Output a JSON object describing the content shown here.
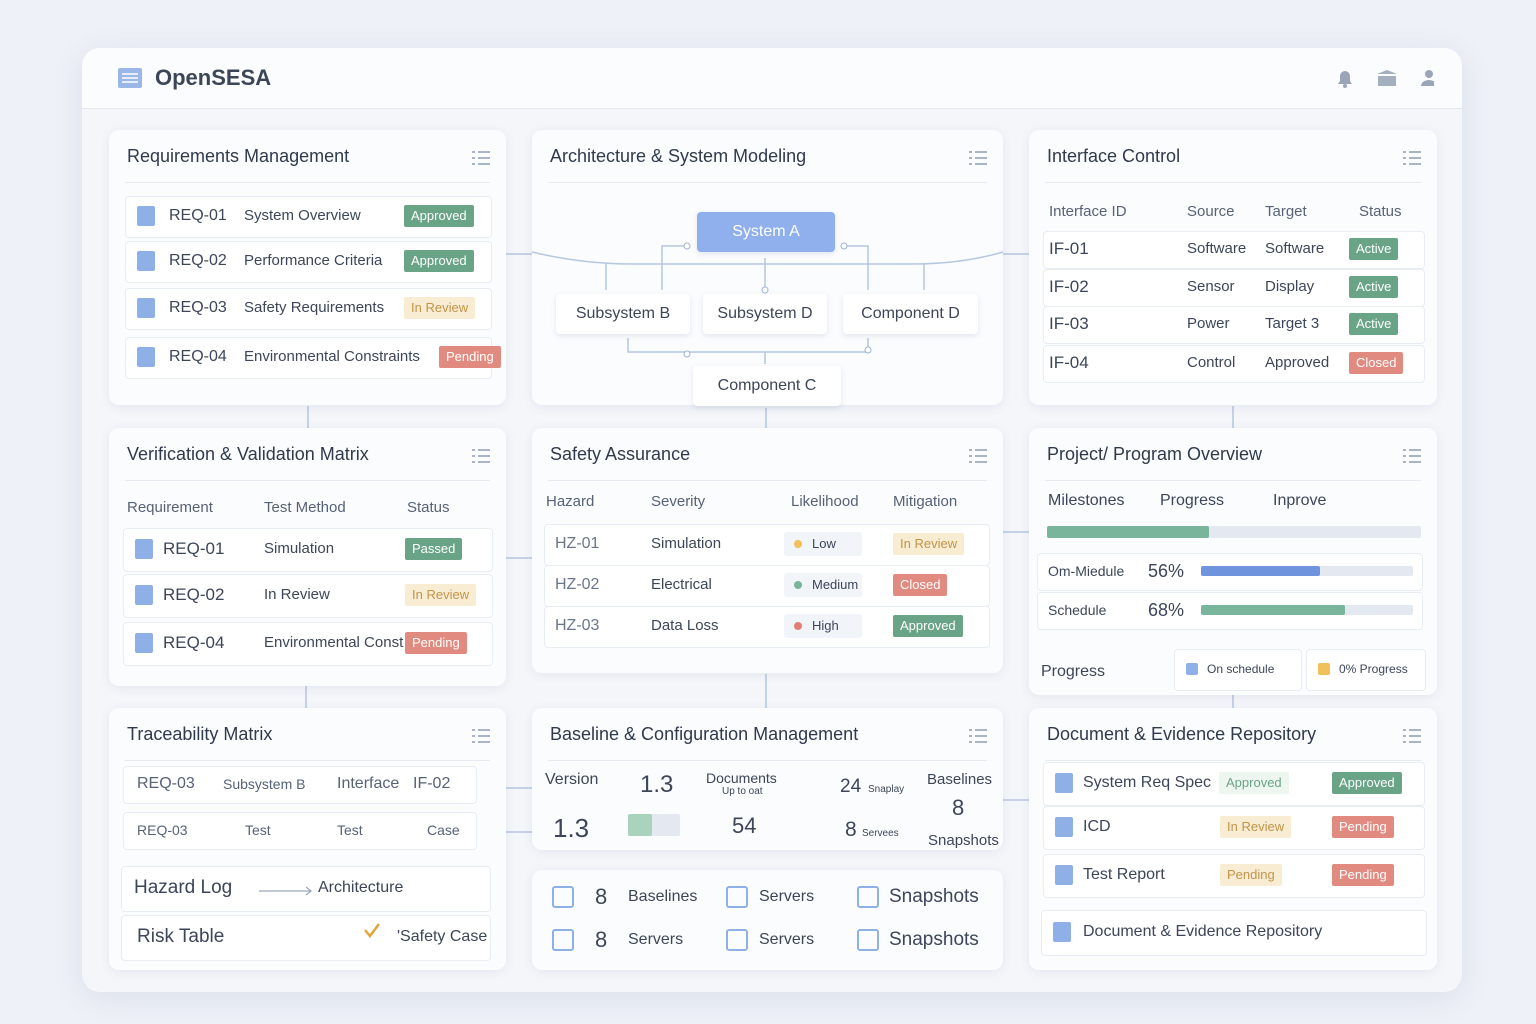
{
  "header": {
    "title": "OpenSESA"
  },
  "requirements": {
    "title": "Requirements Management",
    "rows": [
      [
        "REQ-01",
        "System Overview",
        "Approved"
      ],
      [
        "REQ-02",
        "Performance Criteria",
        "Approved"
      ],
      [
        "REQ-03",
        "Safety Requirements",
        "In Review"
      ],
      [
        "REQ-04",
        "Environmental Constraints",
        "Pending"
      ]
    ]
  },
  "architecture": {
    "title": "Architecture & System Modeling",
    "nodes": [
      "System A",
      "Subsystem B",
      "Subsystem D",
      "Component D",
      "Component C"
    ]
  },
  "interface_control": {
    "title": "Interface Control",
    "columns": [
      "Interface ID",
      "Source",
      "Target",
      "Status"
    ],
    "rows": [
      [
        "IF-01",
        "Software",
        "Software",
        "Active"
      ],
      [
        "IF-02",
        "Sensor",
        "Display",
        "Active"
      ],
      [
        "IF-03",
        "Power",
        "Target 3",
        "Active"
      ],
      [
        "IF-04",
        "Control",
        "Approved",
        "Closed"
      ]
    ]
  },
  "verification": {
    "title": "Verification & Validation Matrix",
    "columns": [
      "Requirement",
      "Test Method",
      "Status"
    ],
    "rows": [
      [
        "REQ-01",
        "Simulation",
        "Passed"
      ],
      [
        "REQ-02",
        "In Review",
        "In Review"
      ],
      [
        "REQ-04",
        "Environmental Const",
        "Pending"
      ]
    ]
  },
  "safety": {
    "title": "Safety Assurance",
    "columns": [
      "Hazard",
      "Severity",
      "Likelihood",
      "Mitigation"
    ],
    "rows": [
      [
        "HZ-01",
        "Simulation",
        "Low",
        "In Review"
      ],
      [
        "HZ-02",
        "Electrical",
        "Medium",
        "Closed"
      ],
      [
        "HZ-03",
        "Data Loss",
        "High",
        "Approved"
      ]
    ]
  },
  "project": {
    "title": "Project/ Program Overview",
    "tabs": [
      "Milestones",
      "Progress",
      "Inprove"
    ],
    "metrics": [
      {
        "label": "Om-Miedule",
        "value": 56,
        "value_label": "56%"
      },
      {
        "label": "Schedule",
        "value": 68,
        "value_label": "68%"
      }
    ],
    "footer": {
      "label": "Progress",
      "items": [
        "On schedule",
        "0% Progress"
      ]
    }
  },
  "traceability": {
    "title": "Traceability Matrix",
    "rows": [
      [
        "REQ-03",
        "Subsystem B",
        "Interface",
        "IF-02"
      ],
      [
        "REQ-03",
        "Test",
        "Test",
        "Case"
      ]
    ],
    "links": [
      {
        "from": "Hazard Log",
        "to": "Architecture"
      },
      {
        "from": "Risk Table",
        "to": "'Safety Case"
      }
    ]
  },
  "baseline": {
    "title": "Baseline & Configuration Management",
    "cells": [
      "Version",
      "1.3",
      "Documents",
      "Up to oat",
      "24",
      "Snaplay",
      "Baselines",
      "8",
      "1.3",
      "54",
      "8",
      "Servees",
      "Snapshots"
    ],
    "summary": [
      {
        "count": "8",
        "label": "Baselines"
      },
      {
        "label": "Servers"
      },
      {
        "label": "Snapshots"
      },
      {
        "count": "8",
        "label": "Servers"
      },
      {
        "label": "Servers"
      },
      {
        "label": "Snapshots"
      }
    ]
  },
  "documents": {
    "title": "Document & Evidence Repository",
    "rows": [
      [
        "System Req Spec",
        "Approved",
        "Approved"
      ],
      [
        "ICD",
        "In Review",
        "Pending"
      ],
      [
        "Test Report",
        "Pending",
        "Pending"
      ]
    ],
    "footer": "Document & Evidence Repository"
  }
}
